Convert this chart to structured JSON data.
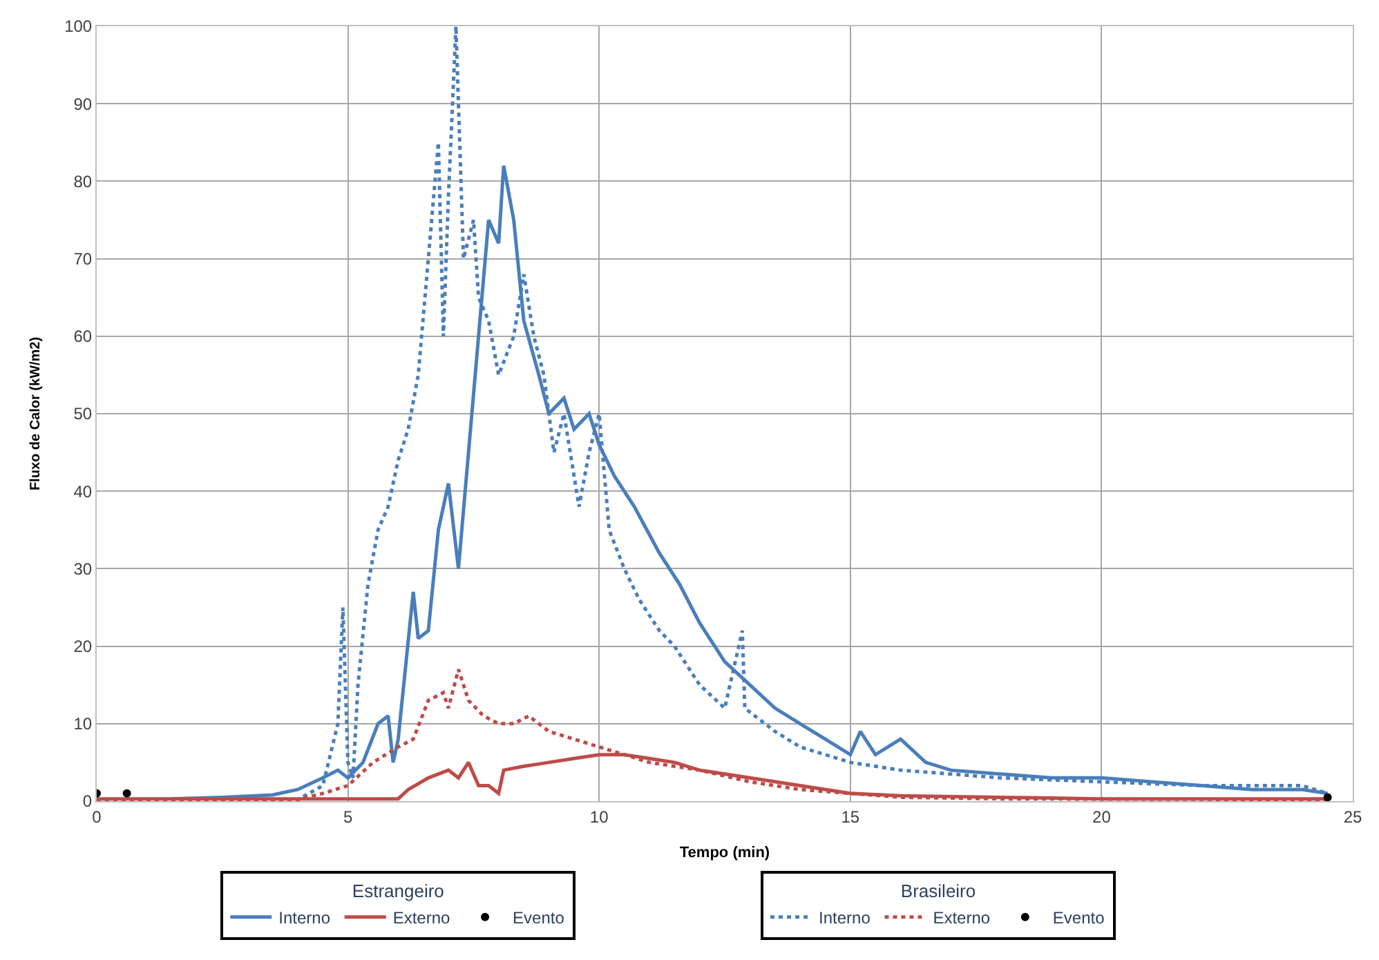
{
  "chart_data": {
    "type": "line",
    "xlabel": "Tempo (min)",
    "ylabel": "Fluxo de Calor (kW/m2)",
    "xlim": [
      0,
      25
    ],
    "xticks": [
      0,
      5,
      10,
      15,
      20,
      25
    ],
    "ylim": [
      0,
      100
    ],
    "yticks": [
      0,
      10,
      20,
      30,
      40,
      50,
      60,
      70,
      80,
      90,
      100
    ],
    "grid": true,
    "legend": "bottom",
    "legend_title": [
      "Estrangeiro",
      "Brasileiro"
    ],
    "marker": "none",
    "series": [
      {
        "name": "Interno",
        "color": "#4a7ebb",
        "line_style": "solid",
        "x": [
          1.5,
          2.5,
          3.5,
          4,
          4.5,
          4.8,
          5,
          5.3,
          5.6,
          5.8,
          5.9,
          6,
          6.3,
          6.4,
          6.6,
          6.8,
          7,
          7.2,
          7.4,
          7.6,
          7.8,
          8,
          8.1,
          8.3,
          8.5,
          8.8,
          9,
          9.3,
          9.5,
          9.8,
          10,
          10.3,
          10.7,
          11.2,
          11.6,
          12,
          12.5,
          13,
          13.5,
          14,
          14.5,
          15,
          15.2,
          15.5,
          16,
          16.5,
          17,
          18,
          19,
          20,
          21,
          22,
          23,
          24,
          24.5
        ],
        "values": [
          0.3,
          0.5,
          0.8,
          1.5,
          3,
          4,
          3,
          5,
          10,
          11,
          5,
          8,
          27,
          21,
          22,
          35,
          41,
          30,
          45,
          60,
          75,
          72,
          82,
          75,
          62,
          55,
          50,
          52,
          48,
          50,
          46,
          42,
          38,
          32,
          28,
          23,
          18,
          15,
          12,
          10,
          8,
          6,
          9,
          6,
          8,
          5,
          4,
          3.5,
          3,
          3,
          2.5,
          2,
          1.5,
          1.5,
          1
        ]
      },
      {
        "name": "Externo",
        "color": "#be4b48",
        "line_style": "solid",
        "x": [
          0,
          3,
          6,
          6.2,
          6.6,
          7,
          7.2,
          7.4,
          7.6,
          7.8,
          8,
          8.1,
          8.5,
          9,
          9.5,
          10,
          10.5,
          11,
          11.5,
          12,
          13,
          14,
          15,
          16,
          18,
          20,
          24.5
        ],
        "values": [
          0.3,
          0.3,
          0.3,
          1.5,
          3,
          4,
          3,
          5,
          2,
          2,
          1,
          4,
          4.5,
          5,
          5.5,
          6,
          6,
          5.5,
          5,
          4,
          3,
          2,
          1,
          0.7,
          0.5,
          0.3,
          0.3
        ]
      },
      {
        "name": "Evento",
        "type": "scatter",
        "marker": "circle",
        "color": "#000000",
        "x": [
          0
        ],
        "values": [
          1
        ]
      },
      {
        "name": "Interno",
        "color": "#4a7ebb",
        "line_style": "dotted",
        "x": [
          0,
          2,
          4,
          4.5,
          4.8,
          4.9,
          5,
          5.1,
          5.2,
          5.4,
          5.6,
          5.8,
          6,
          6.2,
          6.4,
          6.6,
          6.8,
          6.9,
          7,
          7.15,
          7.3,
          7.5,
          7.6,
          7.8,
          8,
          8.3,
          8.5,
          8.7,
          8.9,
          9.1,
          9.3,
          9.6,
          9.8,
          10,
          10.2,
          10.5,
          10.8,
          11.2,
          11.5,
          12,
          12.5,
          12.85,
          12.9,
          13.5,
          14,
          15,
          16,
          17,
          18,
          20,
          22,
          24,
          24.5
        ],
        "values": [
          0.2,
          0.2,
          0.2,
          2,
          10,
          25,
          5,
          3,
          15,
          28,
          35,
          38,
          44,
          48,
          55,
          70,
          85,
          60,
          78,
          100,
          70,
          75,
          65,
          62,
          55,
          60,
          68,
          60,
          55,
          45,
          50,
          38,
          45,
          50,
          35,
          30,
          26,
          22,
          20,
          15,
          12,
          22,
          12,
          9,
          7,
          5,
          4,
          3.5,
          3,
          2.5,
          2,
          2,
          1
        ]
      },
      {
        "name": "Externo",
        "color": "#be4b48",
        "line_style": "dotted",
        "x": [
          0,
          2,
          4,
          4.5,
          5,
          5.5,
          6,
          6.3,
          6.6,
          6.9,
          7,
          7.2,
          7.4,
          7.7,
          8,
          8.3,
          8.6,
          9,
          9.5,
          10,
          10.5,
          11,
          12,
          13,
          14,
          15,
          16,
          18,
          24.5
        ],
        "values": [
          0.2,
          0.2,
          0.2,
          1,
          2,
          5,
          7,
          8,
          13,
          14,
          12,
          17,
          13,
          11,
          10,
          10,
          11,
          9,
          8,
          7,
          6,
          5,
          4,
          2.5,
          1.5,
          1,
          0.5,
          0.3,
          0.2
        ]
      },
      {
        "name": "Evento",
        "type": "scatter",
        "marker": "circle",
        "color": "#000000",
        "x": [
          0.6,
          24.5
        ],
        "values": [
          1,
          0.5
        ]
      }
    ]
  }
}
